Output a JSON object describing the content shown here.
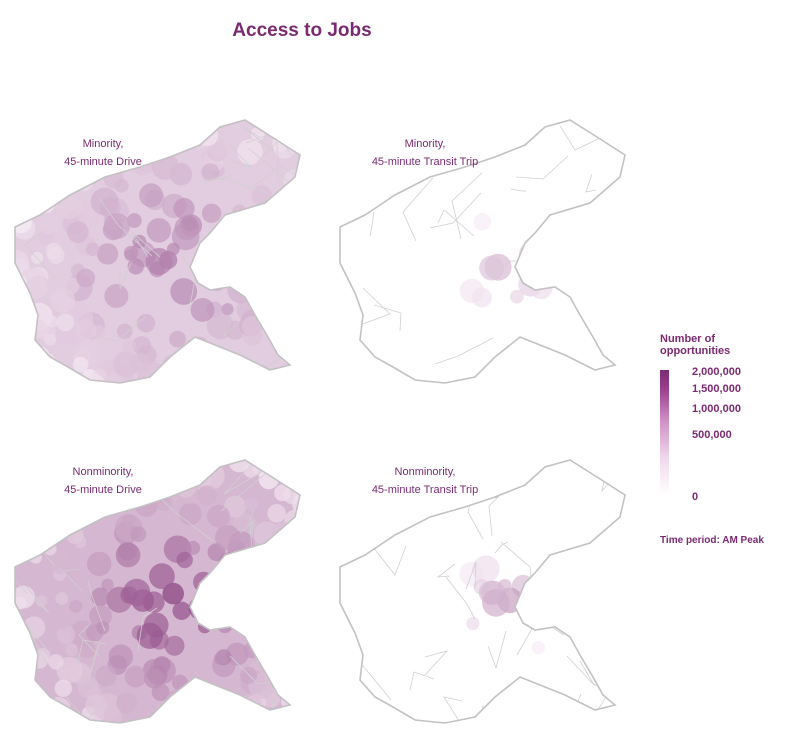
{
  "title": "Access to Jobs",
  "panels": [
    {
      "line1": "Minority,",
      "line2": "45-minute Drive",
      "intensity": 0.55,
      "mode": "drive"
    },
    {
      "line1": "Minority,",
      "line2": "45-minute Transit Trip",
      "intensity": 0.35,
      "mode": "transit"
    },
    {
      "line1": "Nonminority,",
      "line2": "45-minute Drive",
      "intensity": 0.85,
      "mode": "drive"
    },
    {
      "line1": "Nonminority,",
      "line2": "45-minute Transit Trip",
      "intensity": 0.45,
      "mode": "transit"
    }
  ],
  "legend": {
    "title_line1": "Number of",
    "title_line2": "opportunities",
    "ticks": [
      "2,000,000",
      "1,500,000",
      "1,000,000",
      "500,000",
      "0"
    ],
    "color_high": "#7b2a72",
    "color_low": "#ffffff"
  },
  "time_period": "Time period: AM Peak"
}
